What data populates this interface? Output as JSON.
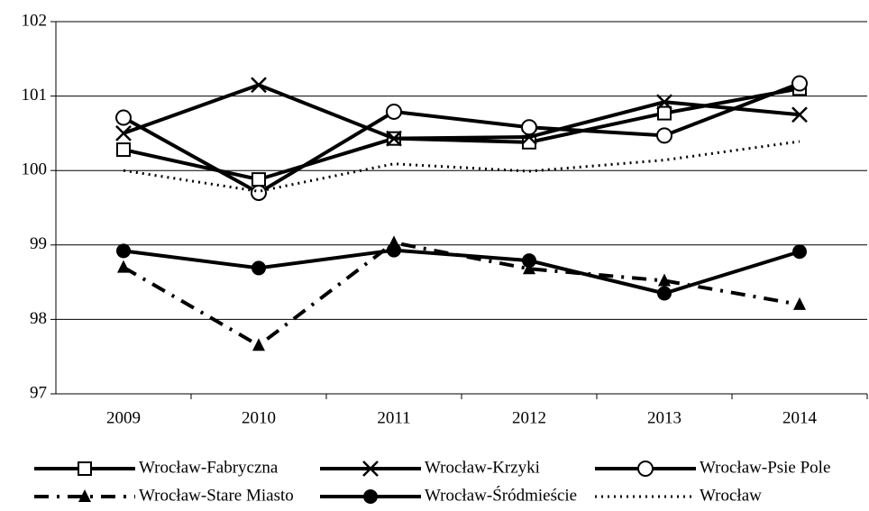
{
  "chart_data": {
    "type": "line",
    "categories": [
      "2009",
      "2010",
      "2011",
      "2012",
      "2013",
      "2014"
    ],
    "ylim": [
      97,
      102
    ],
    "yticks": [
      97,
      98,
      99,
      100,
      101,
      102
    ],
    "grid": true,
    "legend": "bottom",
    "series": [
      {
        "name": "Wrocław-Fabryczna",
        "color": "#000000",
        "marker": "square",
        "dash": "solid",
        "values": [
          100.28,
          99.88,
          100.43,
          100.38,
          100.77,
          101.1
        ]
      },
      {
        "name": "Wrocław-Krzyki",
        "color": "#000000",
        "marker": "x",
        "dash": "solid",
        "values": [
          100.5,
          101.15,
          100.43,
          100.45,
          100.92,
          100.75
        ]
      },
      {
        "name": "Wrocław-Psie Pole",
        "color": "#000000",
        "marker": "circle-open",
        "dash": "solid",
        "values": [
          100.71,
          99.7,
          100.79,
          100.58,
          100.47,
          101.17
        ]
      },
      {
        "name": "Wrocław-Stare Miasto",
        "color": "#000000",
        "marker": "triangle",
        "dash": "dashdot",
        "values": [
          98.7,
          97.65,
          99.03,
          98.68,
          98.52,
          98.2
        ]
      },
      {
        "name": "Wrocław-Śródmieście",
        "color": "#000000",
        "marker": "circle",
        "dash": "solid",
        "values": [
          98.92,
          98.69,
          98.93,
          98.79,
          98.35,
          98.91
        ]
      },
      {
        "name": "Wrocław",
        "color": "#000000",
        "marker": "none",
        "dash": "dotted",
        "values": [
          100.0,
          99.72,
          100.09,
          99.99,
          100.14,
          100.39
        ]
      }
    ]
  }
}
